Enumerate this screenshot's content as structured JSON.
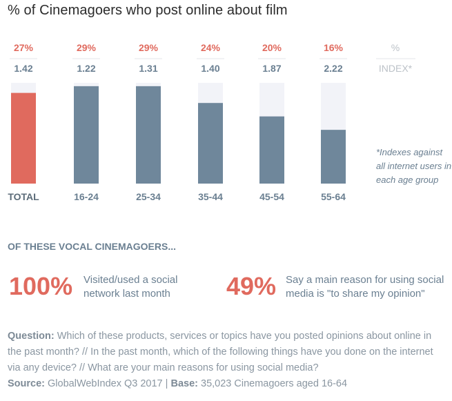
{
  "title": "% of Cinemagoers who post online about film",
  "header": {
    "pct_label": "%",
    "index_label": "INDEX*"
  },
  "note": "*Indexes against all internet users in each age group",
  "section_title": "OF THESE VOCAL CINEMAGOERS...",
  "stats": [
    {
      "value": "100%",
      "label": "Visited/used a social network last month"
    },
    {
      "value": "49%",
      "label": "Say a main reason for using social media is \"to share my opinion\""
    }
  ],
  "footer": {
    "question_label": "Question:",
    "question_text": "Which of these products, services or topics have you posted opinions about online in the past month? // In the past month, which of the following things have you done on the internet via any device? // What are your main reasons for using social media?",
    "source_label": "Source:",
    "source_text": "GlobalWebIndex Q3 2017",
    "separator": "|",
    "base_label": "Base:",
    "base_text": "35,023 Cinemagoers aged 16-64"
  },
  "colors": {
    "total_bar": "#e06a5e",
    "bar": "#6f879b",
    "track": "#f2f3f8"
  },
  "chart_data": {
    "type": "bar",
    "title": "% of Cinemagoers who post online about film",
    "categories": [
      "TOTAL",
      "16-24",
      "25-34",
      "35-44",
      "45-54",
      "55-64"
    ],
    "values": [
      27,
      29,
      29,
      24,
      20,
      16
    ],
    "value_labels": [
      "27%",
      "29%",
      "29%",
      "24%",
      "20%",
      "16%"
    ],
    "index": [
      "1.42",
      "1.22",
      "1.31",
      "1.40",
      "1.87",
      "2.22"
    ],
    "unit": "%",
    "ylim": [
      0,
      30
    ],
    "grid": false,
    "legend": "none"
  }
}
